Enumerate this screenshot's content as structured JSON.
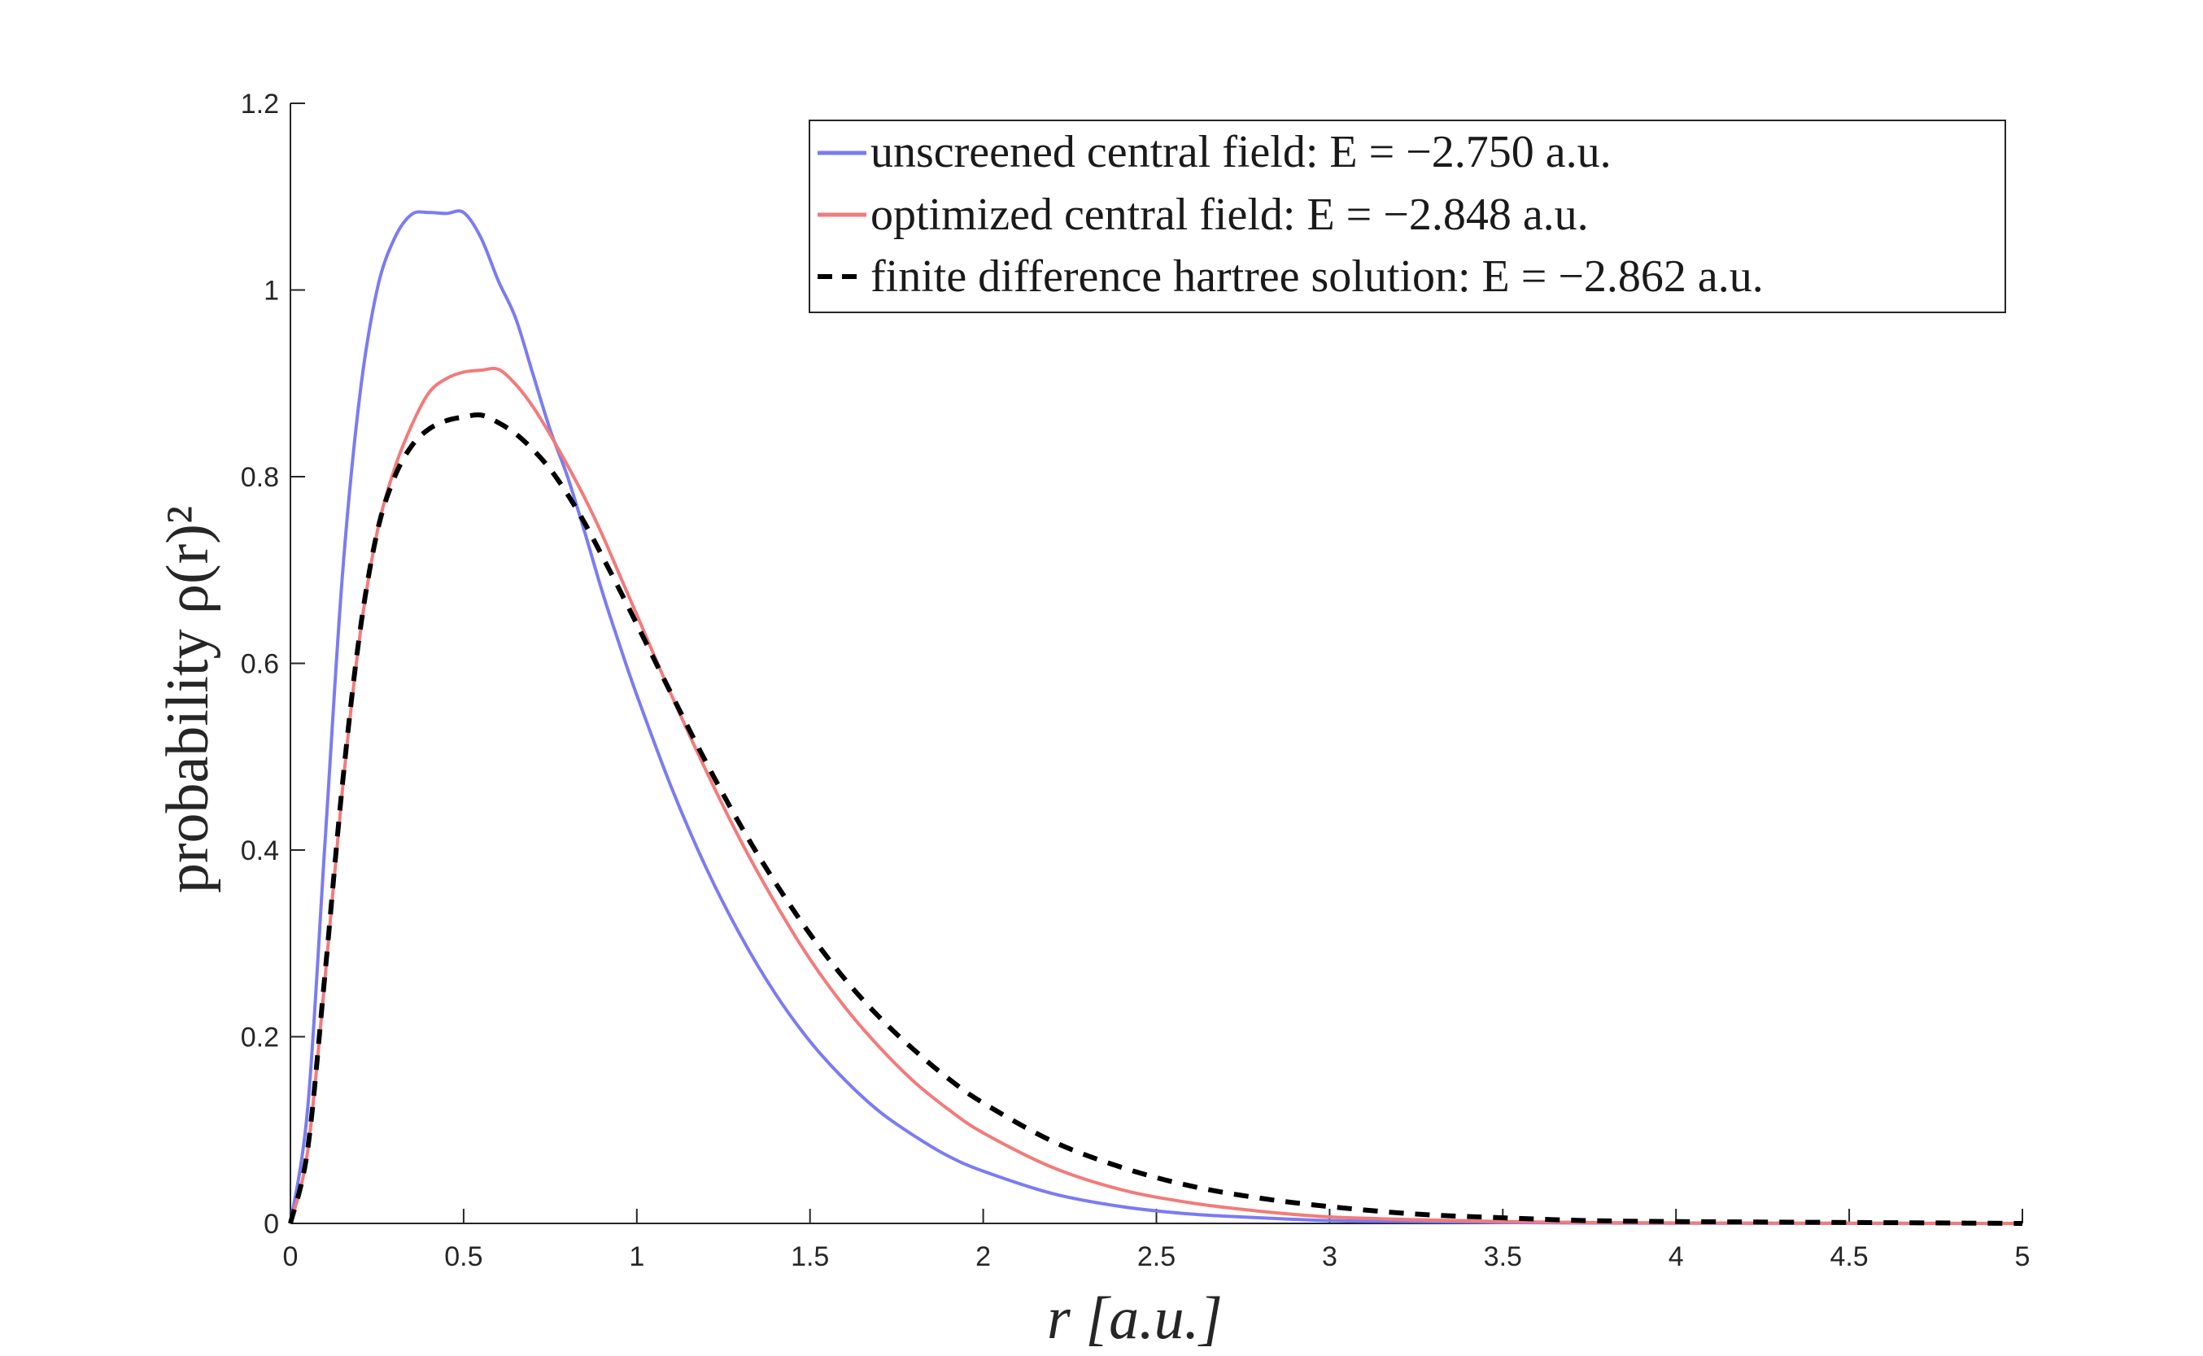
{
  "colors": {
    "unscreened": "#7b7bf2",
    "optimized": "#f27b7b",
    "hartree": "#000000",
    "axis": "#262626"
  },
  "chart_data": {
    "type": "line",
    "xlabel": "r [a.u.]",
    "ylabel": "probability ρ(r)²",
    "xlim": [
      0,
      5
    ],
    "ylim": [
      0,
      1.2
    ],
    "x_ticks": [
      "0",
      "0.5",
      "1",
      "1.5",
      "2",
      "2.5",
      "3",
      "3.5",
      "4",
      "4.5",
      "5"
    ],
    "y_ticks": [
      "0",
      "0.2",
      "0.4",
      "0.6",
      "0.8",
      "1",
      "1.2"
    ],
    "grid": false,
    "legend_position": "top-right",
    "series": [
      {
        "name": "unscreened central field: E = −2.750 a.u.",
        "style": "solid",
        "color": "#7b7bf2",
        "x": [
          0,
          0.05,
          0.1,
          0.15,
          0.2,
          0.25,
          0.3,
          0.35,
          0.4,
          0.45,
          0.5,
          0.55,
          0.6,
          0.65,
          0.7,
          0.75,
          0.8,
          0.85,
          0.9,
          0.95,
          1.0,
          1.1,
          1.2,
          1.3,
          1.4,
          1.5,
          1.6,
          1.7,
          1.8,
          1.9,
          2.0,
          2.2,
          2.4,
          2.6,
          2.8,
          3.0,
          3.25,
          3.5,
          3.75,
          4.0,
          4.5,
          5.0
        ],
        "y": [
          0,
          0.124,
          0.409,
          0.694,
          0.886,
          1.0,
          1.055,
          1.081,
          1.083,
          1.082,
          1.083,
          1.056,
          1.01,
          0.97,
          0.91,
          0.85,
          0.8,
          0.74,
          0.677,
          0.62,
          0.566,
          0.467,
          0.381,
          0.308,
          0.246,
          0.195,
          0.154,
          0.12,
          0.094,
          0.072,
          0.056,
          0.032,
          0.018,
          0.01,
          0.006,
          0.003,
          0.002,
          0.001,
          0.0004,
          0.0002,
          0.0001,
          0.0
        ],
        "stroke_px": 4
      },
      {
        "name": "optimized central field: E = −2.848 a.u.",
        "style": "solid",
        "color": "#f27b7b",
        "x": [
          0,
          0.05,
          0.1,
          0.15,
          0.2,
          0.25,
          0.3,
          0.35,
          0.4,
          0.45,
          0.5,
          0.55,
          0.6,
          0.65,
          0.7,
          0.75,
          0.8,
          0.85,
          0.9,
          0.95,
          1.0,
          1.1,
          1.2,
          1.3,
          1.4,
          1.5,
          1.6,
          1.7,
          1.8,
          1.9,
          2.0,
          2.2,
          2.4,
          2.6,
          2.8,
          3.0,
          3.25,
          3.5,
          3.75,
          4.0,
          4.5,
          5.0
        ],
        "y": [
          0,
          0.078,
          0.263,
          0.464,
          0.628,
          0.74,
          0.808,
          0.855,
          0.89,
          0.905,
          0.912,
          0.914,
          0.915,
          0.899,
          0.875,
          0.845,
          0.812,
          0.777,
          0.738,
          0.695,
          0.652,
          0.566,
          0.485,
          0.41,
          0.343,
          0.283,
          0.232,
          0.189,
          0.152,
          0.122,
          0.097,
          0.06,
          0.036,
          0.022,
          0.013,
          0.007,
          0.004,
          0.002,
          0.001,
          0.0005,
          0.0002,
          0.0
        ],
        "stroke_px": 4
      },
      {
        "name": "finite difference hartree solution: E = −2.862 a.u.",
        "style": "dashed",
        "color": "#000000",
        "x": [
          0,
          0.05,
          0.1,
          0.15,
          0.2,
          0.25,
          0.3,
          0.35,
          0.4,
          0.45,
          0.5,
          0.55,
          0.6,
          0.65,
          0.7,
          0.75,
          0.8,
          0.85,
          0.9,
          0.95,
          1.0,
          1.1,
          1.2,
          1.3,
          1.4,
          1.5,
          1.6,
          1.7,
          1.8,
          1.9,
          2.0,
          2.2,
          2.4,
          2.6,
          2.8,
          3.0,
          3.25,
          3.5,
          3.75,
          4.0,
          4.5,
          5.0
        ],
        "y": [
          0,
          0.08,
          0.268,
          0.47,
          0.632,
          0.74,
          0.799,
          0.833,
          0.851,
          0.86,
          0.864,
          0.866,
          0.858,
          0.846,
          0.829,
          0.808,
          0.781,
          0.75,
          0.715,
          0.679,
          0.642,
          0.567,
          0.494,
          0.426,
          0.365,
          0.31,
          0.262,
          0.221,
          0.186,
          0.155,
          0.129,
          0.088,
          0.06,
          0.04,
          0.027,
          0.018,
          0.01,
          0.006,
          0.003,
          0.002,
          0.001,
          0.0
        ],
        "stroke_px": 6,
        "dash": "18,14"
      }
    ]
  }
}
